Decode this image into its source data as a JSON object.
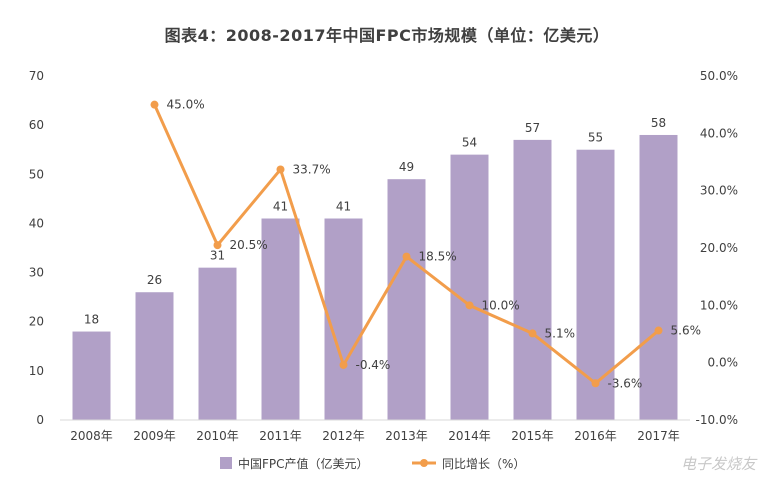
{
  "chart_data": {
    "type": "bar",
    "title": "图表4：2008-2017年中国FPC市场规模（单位：亿美元）",
    "categories": [
      "2008年",
      "2009年",
      "2010年",
      "2011年",
      "2012年",
      "2013年",
      "2014年",
      "2015年",
      "2016年",
      "2017年"
    ],
    "series": [
      {
        "name": "中国FPC产值（亿美元）",
        "type": "bar",
        "axis": "left",
        "color": "#b1a0c7",
        "values": [
          18,
          26,
          31,
          41,
          41,
          49,
          54,
          57,
          55,
          58
        ],
        "labels": [
          "18",
          "26",
          "31",
          "41",
          "41",
          "49",
          "54",
          "57",
          "55",
          "58"
        ]
      },
      {
        "name": "同比增长（%）",
        "type": "line",
        "axis": "right",
        "color": "#f29d4b",
        "values": [
          null,
          45.0,
          20.5,
          33.7,
          -0.4,
          18.5,
          10.0,
          5.1,
          -3.6,
          5.6
        ],
        "labels": [
          null,
          "45.0%",
          "20.5%",
          "33.7%",
          "-0.4%",
          "18.5%",
          "10.0%",
          "5.1%",
          "-3.6%",
          "5.6%"
        ]
      }
    ],
    "ylim_left": [
      0,
      70
    ],
    "yticks_left": [
      "0",
      "10",
      "20",
      "30",
      "40",
      "50",
      "60",
      "70"
    ],
    "ylim_right": [
      -10,
      50
    ],
    "yticks_right": [
      "-10.0%",
      "0.0%",
      "10.0%",
      "20.0%",
      "30.0%",
      "40.0%",
      "50.0%"
    ],
    "legend_position": "bottom",
    "grid": false
  },
  "watermark": "电子发烧友"
}
